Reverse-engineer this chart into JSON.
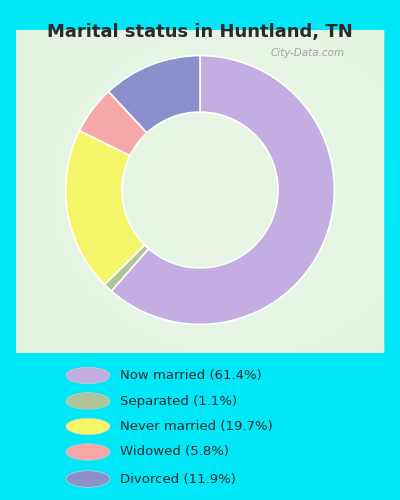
{
  "title": "Marital status in Huntland, TN",
  "slices": [
    61.4,
    1.1,
    19.7,
    5.8,
    11.9
  ],
  "colors": [
    "#c2aee0",
    "#afc49a",
    "#f5f56a",
    "#f5a8a8",
    "#8b8fcc"
  ],
  "labels": [
    "Now married (61.4%)",
    "Separated (1.1%)",
    "Never married (19.7%)",
    "Widowed (5.8%)",
    "Divorced (11.9%)"
  ],
  "legend_colors": [
    "#c2aee0",
    "#afc49a",
    "#f5f56a",
    "#f5a8a8",
    "#8b8fcc"
  ],
  "bg_outer": "#00e8f8",
  "bg_chart_color1": "#e8f5e5",
  "bg_chart_color2": "#f5fbf5",
  "title_fontsize": 13,
  "donut_width": 0.42,
  "startangle": 90,
  "watermark": "City-Data.com"
}
